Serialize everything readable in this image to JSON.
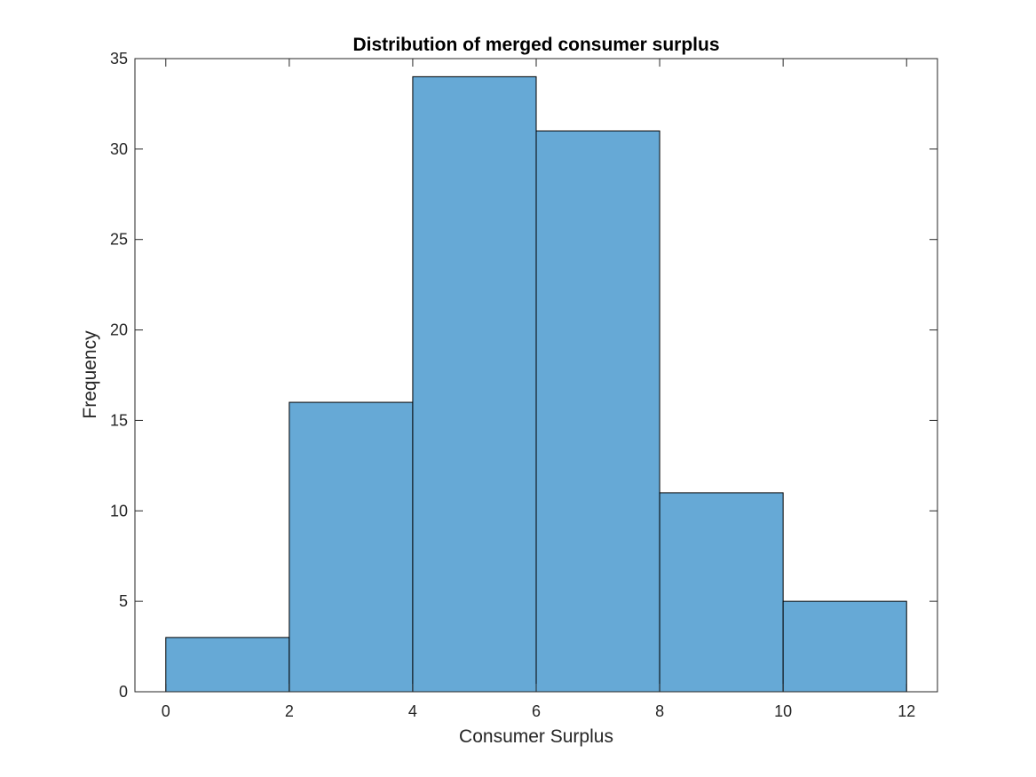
{
  "chart_data": {
    "type": "bar",
    "subtype": "histogram",
    "title": "Distribution of merged consumer surplus",
    "xlabel": "Consumer Surplus",
    "ylabel": "Frequency",
    "bin_edges": [
      0,
      2,
      4,
      6,
      8,
      10,
      12
    ],
    "values": [
      3,
      16,
      34,
      31,
      11,
      5
    ],
    "xlim": [
      -0.5,
      12.5
    ],
    "ylim": [
      0,
      35
    ],
    "xticks": [
      0,
      2,
      4,
      6,
      8,
      10,
      12
    ],
    "yticks": [
      0,
      5,
      10,
      15,
      20,
      25,
      30,
      35
    ],
    "grid": false,
    "legend": "none",
    "bar_color": "#66a9d6",
    "edge_color": "#000000"
  }
}
